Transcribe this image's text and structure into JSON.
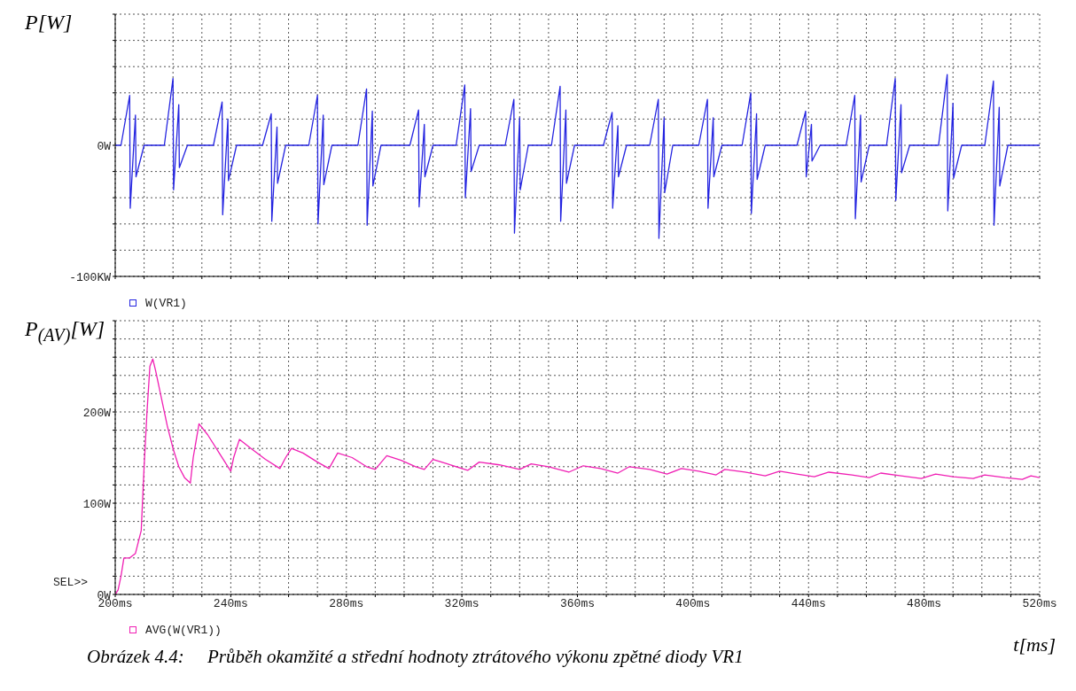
{
  "chart_data": [
    {
      "type": "line",
      "ylabel": "P[W]",
      "legend": "bottom left",
      "grid": true,
      "tick_labels": "y",
      "xlim": [
        200,
        520
      ],
      "xticks": [
        {
          "value": 200,
          "label": null
        },
        {
          "value": 210,
          "label": null
        },
        {
          "value": 220,
          "label": null
        },
        {
          "value": 230,
          "label": null
        },
        {
          "value": 240,
          "label": null
        },
        {
          "value": 250,
          "label": null
        },
        {
          "value": 260,
          "label": null
        },
        {
          "value": 270,
          "label": null
        },
        {
          "value": 280,
          "label": null
        },
        {
          "value": 290,
          "label": null
        },
        {
          "value": 300,
          "label": null
        },
        {
          "value": 310,
          "label": null
        },
        {
          "value": 320,
          "label": null
        },
        {
          "value": 330,
          "label": null
        },
        {
          "value": 340,
          "label": null
        },
        {
          "value": 350,
          "label": null
        },
        {
          "value": 360,
          "label": null
        },
        {
          "value": 370,
          "label": null
        },
        {
          "value": 380,
          "label": null
        },
        {
          "value": 390,
          "label": null
        },
        {
          "value": 400,
          "label": null
        },
        {
          "value": 410,
          "label": null
        },
        {
          "value": 420,
          "label": null
        },
        {
          "value": 430,
          "label": null
        },
        {
          "value": 440,
          "label": null
        },
        {
          "value": 450,
          "label": null
        },
        {
          "value": 460,
          "label": null
        },
        {
          "value": 470,
          "label": null
        },
        {
          "value": 480,
          "label": null
        },
        {
          "value": 490,
          "label": null
        },
        {
          "value": 500,
          "label": null
        },
        {
          "value": 510,
          "label": null
        },
        {
          "value": 520,
          "label": null
        }
      ],
      "ylim": [
        -100,
        100
      ],
      "yticks": [
        {
          "value": -100,
          "label": "-100KW"
        },
        {
          "value": -80,
          "label": null
        },
        {
          "value": -60,
          "label": null
        },
        {
          "value": -40,
          "label": null
        },
        {
          "value": -20,
          "label": null
        },
        {
          "value": 0,
          "label": "0W"
        },
        {
          "value": 20,
          "label": null
        },
        {
          "value": 40,
          "label": null
        },
        {
          "value": 60,
          "label": null
        },
        {
          "value": 80,
          "label": null
        },
        {
          "value": 100,
          "label": null
        }
      ],
      "series": [
        {
          "name": "W(VR1)",
          "color": "#2424e0",
          "x": [
            200,
            202,
            205,
            205.2,
            207,
            207.2,
            210,
            217,
            220,
            220.2,
            222,
            222.2,
            225,
            234,
            237,
            237.2,
            239,
            239.2,
            242,
            251,
            254,
            254.2,
            256,
            256.2,
            259,
            267,
            270,
            270.2,
            272,
            272.2,
            275,
            284,
            287,
            287.2,
            289,
            289.2,
            292,
            302,
            305,
            305.2,
            307,
            307.2,
            310,
            318,
            321,
            321.2,
            323,
            323.2,
            326,
            335,
            338,
            338.2,
            340,
            340.2,
            343,
            351,
            354,
            354.2,
            356,
            356.2,
            359,
            369,
            372,
            372.2,
            374,
            374.2,
            377,
            385,
            388,
            388.2,
            390,
            390.2,
            393,
            402,
            405,
            405.2,
            407,
            407.2,
            410,
            417,
            420,
            420.2,
            422,
            422.2,
            425,
            436,
            439,
            439.2,
            441,
            441.2,
            444,
            453,
            456,
            456.2,
            458,
            458.2,
            461,
            467,
            470,
            470.2,
            472,
            472.2,
            475,
            485,
            488,
            488.2,
            490,
            490.2,
            493,
            501,
            504,
            504.2,
            506,
            506.2,
            509,
            520
          ],
          "values": [
            0,
            0,
            38,
            -48,
            23,
            -24,
            0,
            0,
            51,
            -34,
            31,
            -17,
            0,
            0,
            33,
            -53,
            20,
            -27,
            0,
            0,
            24,
            -58,
            14,
            -29,
            0,
            0,
            38,
            -60,
            23,
            -30,
            0,
            0,
            43,
            -61,
            26,
            -31,
            0,
            0,
            27,
            -47,
            16,
            -24,
            0,
            0,
            46,
            -40,
            28,
            -20,
            0,
            0,
            35,
            -67,
            21,
            -34,
            0,
            0,
            45,
            -58,
            27,
            -29,
            0,
            0,
            25,
            -48,
            15,
            -24,
            0,
            0,
            35,
            -71,
            21,
            -36,
            0,
            0,
            35,
            -48,
            21,
            -24,
            0,
            0,
            40,
            -52,
            24,
            -26,
            0,
            0,
            26,
            -24,
            16,
            -12,
            0,
            0,
            38,
            -56,
            23,
            -28,
            0,
            0,
            51,
            -42,
            31,
            -21,
            0,
            0,
            54,
            -50,
            32,
            -25,
            0,
            0,
            49,
            -61,
            29,
            -31,
            0,
            0
          ]
        }
      ]
    },
    {
      "type": "line",
      "ylabel": "P$_{(AV)}$[W]",
      "xlabel": "t[ms]",
      "legend": "bottom left",
      "grid": true,
      "xlim": [
        200,
        520
      ],
      "xticks": [
        {
          "value": 200,
          "label": "200ms"
        },
        {
          "value": 210,
          "label": null
        },
        {
          "value": 220,
          "label": null
        },
        {
          "value": 230,
          "label": null
        },
        {
          "value": 240,
          "label": "240ms"
        },
        {
          "value": 250,
          "label": null
        },
        {
          "value": 260,
          "label": null
        },
        {
          "value": 270,
          "label": null
        },
        {
          "value": 280,
          "label": "280ms"
        },
        {
          "value": 290,
          "label": null
        },
        {
          "value": 300,
          "label": null
        },
        {
          "value": 310,
          "label": null
        },
        {
          "value": 320,
          "label": "320ms"
        },
        {
          "value": 330,
          "label": null
        },
        {
          "value": 340,
          "label": null
        },
        {
          "value": 350,
          "label": null
        },
        {
          "value": 360,
          "label": "360ms"
        },
        {
          "value": 370,
          "label": null
        },
        {
          "value": 380,
          "label": null
        },
        {
          "value": 390,
          "label": null
        },
        {
          "value": 400,
          "label": "400ms"
        },
        {
          "value": 410,
          "label": null
        },
        {
          "value": 420,
          "label": null
        },
        {
          "value": 430,
          "label": null
        },
        {
          "value": 440,
          "label": "440ms"
        },
        {
          "value": 450,
          "label": null
        },
        {
          "value": 460,
          "label": null
        },
        {
          "value": 470,
          "label": null
        },
        {
          "value": 480,
          "label": "480ms"
        },
        {
          "value": 490,
          "label": null
        },
        {
          "value": 500,
          "label": null
        },
        {
          "value": 510,
          "label": null
        },
        {
          "value": 520,
          "label": "520ms"
        }
      ],
      "ylim": [
        0,
        300
      ],
      "yticks": [
        {
          "value": 0,
          "label": "0W"
        },
        {
          "value": 20,
          "label": null
        },
        {
          "value": 40,
          "label": null
        },
        {
          "value": 60,
          "label": null
        },
        {
          "value": 80,
          "label": null
        },
        {
          "value": 100,
          "label": "100W"
        },
        {
          "value": 120,
          "label": null
        },
        {
          "value": 140,
          "label": null
        },
        {
          "value": 160,
          "label": null
        },
        {
          "value": 180,
          "label": null
        },
        {
          "value": 200,
          "label": "200W"
        },
        {
          "value": 220,
          "label": null
        },
        {
          "value": 240,
          "label": null
        },
        {
          "value": 260,
          "label": null
        },
        {
          "value": 280,
          "label": null
        },
        {
          "value": 300,
          "label": null
        }
      ],
      "annotations": [
        "SEL>>",
        "Obrázek 4.4:     Průběh okamžité a střední hodnoty ztrátového výkonu zpětné diody VR1"
      ],
      "series": [
        {
          "name": "AVG(W(VR1))",
          "color": "#f01fb4",
          "x": [
            200,
            201,
            202,
            203,
            205,
            207,
            209,
            210,
            211,
            212,
            213,
            214,
            216,
            218,
            220,
            222,
            224,
            226,
            227,
            229,
            232,
            236,
            239,
            240,
            241,
            243,
            247,
            252,
            257,
            259,
            261,
            265,
            270,
            274,
            277,
            282,
            287,
            290,
            294,
            299,
            304,
            307,
            310,
            315,
            322,
            326,
            333,
            340,
            344,
            350,
            357,
            362,
            368,
            374,
            378,
            385,
            391,
            396,
            402,
            408,
            411,
            418,
            425,
            430,
            436,
            442,
            447,
            455,
            461,
            465,
            472,
            479,
            484,
            490,
            497,
            501,
            508,
            514,
            517,
            520
          ],
          "values": [
            0,
            5,
            20,
            40,
            40,
            45,
            70,
            140,
            200,
            250,
            258,
            245,
            215,
            185,
            160,
            140,
            128,
            122,
            150,
            187,
            175,
            155,
            140,
            135,
            150,
            170,
            160,
            148,
            138,
            150,
            160,
            155,
            145,
            138,
            155,
            150,
            140,
            137,
            152,
            147,
            140,
            137,
            148,
            143,
            136,
            145,
            142,
            137,
            143,
            140,
            134,
            141,
            138,
            133,
            140,
            137,
            132,
            138,
            135,
            131,
            137,
            134,
            130,
            135,
            132,
            129,
            134,
            131,
            128,
            133,
            130,
            127,
            132,
            129,
            127,
            131,
            128,
            126,
            130,
            128
          ]
        }
      ]
    }
  ]
}
